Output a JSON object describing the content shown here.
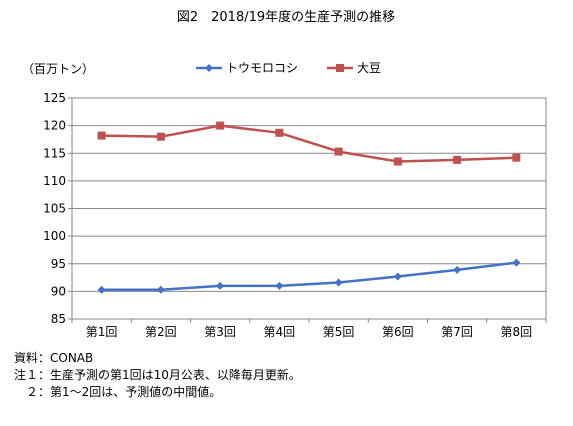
{
  "chart_data": {
    "type": "line",
    "title": "図2　2018/19年度の生産予測の推移",
    "unit_label": "（百万トン）",
    "categories": [
      "第1回",
      "第2回",
      "第3回",
      "第4回",
      "第5回",
      "第6回",
      "第7回",
      "第8回"
    ],
    "ylim": [
      85,
      125
    ],
    "yticks": [
      85,
      90,
      95,
      100,
      105,
      110,
      115,
      120,
      125
    ],
    "grid": true,
    "legend_position": "top",
    "series": [
      {
        "name": "トウモロコシ",
        "color": "#4472C4",
        "marker": "diamond",
        "values": [
          90.3,
          90.3,
          91.0,
          91.0,
          91.6,
          92.7,
          93.9,
          95.2
        ]
      },
      {
        "name": "大豆",
        "color": "#C0504D",
        "marker": "square",
        "values": [
          118.2,
          118.0,
          120.0,
          118.7,
          115.3,
          113.5,
          113.8,
          114.2
        ]
      }
    ]
  },
  "notes": {
    "source": "資料：CONAB",
    "note1": "注１：生産予測の第1回は10月公表、以降毎月更新。",
    "note2": "　２：第1～2回は、予測値の中間値。"
  }
}
